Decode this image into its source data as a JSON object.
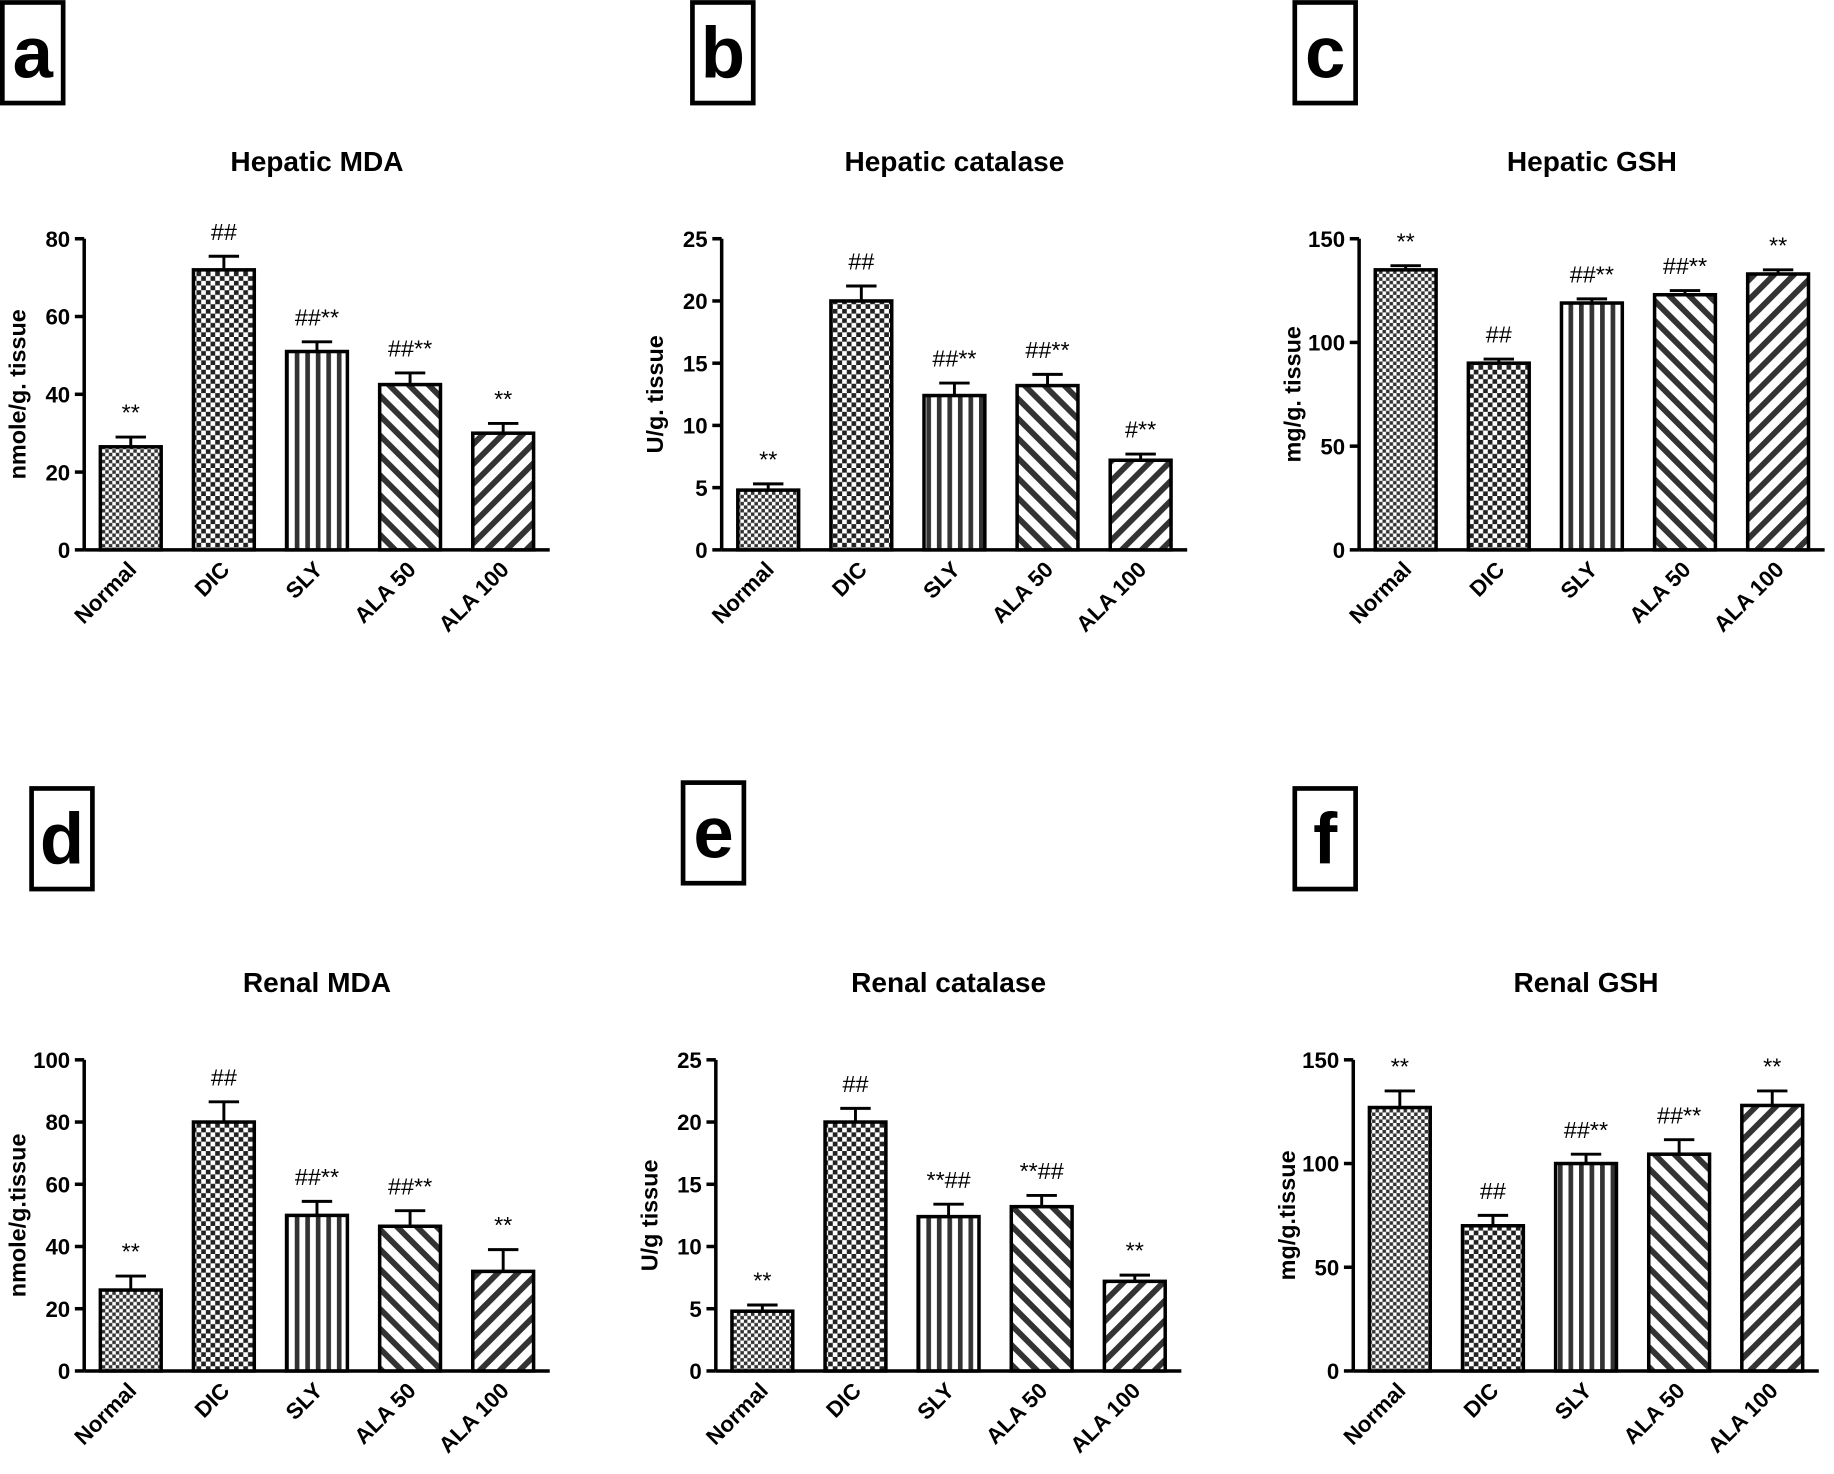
{
  "chart_data": [
    {
      "panel": "a",
      "type": "bar",
      "title": "Hepatic MDA",
      "ylabel": "nmole/g. tissue",
      "categories": [
        "Normal",
        "DIC",
        "SLY",
        "ALA 50",
        "ALA 100"
      ],
      "values": [
        26.5,
        72,
        51,
        42.5,
        30
      ],
      "errors": [
        2.5,
        3.5,
        2.5,
        3,
        2.5
      ],
      "annotations": [
        "**",
        "##",
        "##**",
        "##**",
        "**"
      ],
      "ylim": [
        0,
        80
      ],
      "yticks": [
        0,
        20,
        40,
        60,
        80
      ]
    },
    {
      "panel": "b",
      "type": "bar",
      "title": "Hepatic catalase",
      "ylabel": "U/g. tissue",
      "categories": [
        "Normal",
        "DIC",
        "SLY",
        "ALA 50",
        "ALA 100"
      ],
      "values": [
        4.8,
        20,
        12.4,
        13.2,
        7.2
      ],
      "errors": [
        0.5,
        1.2,
        1,
        0.9,
        0.5
      ],
      "annotations": [
        "**",
        "##",
        "##**",
        "##**",
        "#**"
      ],
      "ylim": [
        0,
        25
      ],
      "yticks": [
        0,
        5,
        10,
        15,
        20,
        25
      ]
    },
    {
      "panel": "c",
      "type": "bar",
      "title": "Hepatic GSH",
      "ylabel": "mg/g. tissue",
      "categories": [
        "Normal",
        "DIC",
        "SLY",
        "ALA 50",
        "ALA 100"
      ],
      "values": [
        135,
        90,
        119,
        123,
        133
      ],
      "errors": [
        2,
        2,
        2,
        2,
        2
      ],
      "annotations": [
        "**",
        "##",
        "##**",
        "##**",
        "**"
      ],
      "ylim": [
        0,
        150
      ],
      "yticks": [
        0,
        50,
        100,
        150
      ]
    },
    {
      "panel": "d",
      "type": "bar",
      "title": "Renal MDA",
      "ylabel": "nmole/g.tissue",
      "categories": [
        "Normal",
        "DIC",
        "SLY",
        "ALA 50",
        "ALA 100"
      ],
      "values": [
        26,
        80,
        50,
        46.5,
        32
      ],
      "errors": [
        4.5,
        6.5,
        4.5,
        5,
        7
      ],
      "annotations": [
        "**",
        "##",
        "##**",
        "##**",
        "**"
      ],
      "ylim": [
        0,
        100
      ],
      "yticks": [
        0,
        20,
        40,
        60,
        80,
        100
      ]
    },
    {
      "panel": "e",
      "type": "bar",
      "title": "Renal catalase",
      "ylabel": "U/g tissue",
      "categories": [
        "Normal",
        "DIC",
        "SLY",
        "ALA 50",
        "ALA 100"
      ],
      "values": [
        4.8,
        20,
        12.4,
        13.2,
        7.2
      ],
      "errors": [
        0.5,
        1.1,
        1,
        0.9,
        0.5
      ],
      "annotations": [
        "**",
        "##",
        "**##",
        "**##",
        "**"
      ],
      "ylim": [
        0,
        25
      ],
      "yticks": [
        0,
        5,
        10,
        15,
        20,
        25
      ]
    },
    {
      "panel": "f",
      "type": "bar",
      "title": "Renal GSH",
      "ylabel": "mg/g.tissue",
      "categories": [
        "Normal",
        "DIC",
        "SLY",
        "ALA 50",
        "ALA 100"
      ],
      "values": [
        127,
        70,
        100,
        104.5,
        128
      ],
      "errors": [
        8,
        5,
        4.5,
        7,
        7
      ],
      "annotations": [
        "**",
        "##",
        "##**",
        "##**",
        "**"
      ],
      "ylim": [
        0,
        150
      ],
      "yticks": [
        0,
        50,
        100,
        150
      ]
    }
  ]
}
